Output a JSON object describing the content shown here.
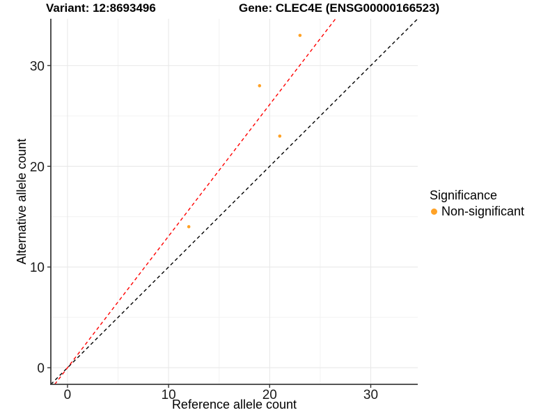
{
  "figure": {
    "title_left": "Variant: 12:8693496",
    "title_right": "Gene: CLEC4E (ENSG00000166523)"
  },
  "chart_data": {
    "type": "scatter",
    "title": "Variant: 12:8693496   Gene: CLEC4E (ENSG00000166523)",
    "xlabel": "Reference allele count",
    "ylabel": "Alternative allele count",
    "xlim": [
      -1.65,
      34.65
    ],
    "ylim": [
      -1.65,
      34.65
    ],
    "x_ticks": [
      0,
      10,
      20,
      30
    ],
    "y_ticks": [
      0,
      10,
      20,
      30
    ],
    "x_minor_ticks": [
      5,
      15,
      25
    ],
    "y_minor_ticks": [
      5,
      15,
      25
    ],
    "grid": true,
    "points": [
      {
        "ref": 12,
        "alt": 14
      },
      {
        "ref": 19,
        "alt": 28
      },
      {
        "ref": 21,
        "alt": 23
      },
      {
        "ref": 23,
        "alt": 33
      }
    ],
    "point_color": "#FFA226",
    "reference_lines": [
      {
        "name": "identity",
        "slope": 1.0,
        "intercept": 0,
        "color": "#000000",
        "style": "dashed"
      },
      {
        "name": "allelic-ratio",
        "slope": 1.3067,
        "intercept": 0,
        "color": "#FF0000",
        "style": "dashed"
      }
    ],
    "legend": {
      "title": "Significance",
      "position": "right",
      "items": [
        {
          "label": "Non-significant",
          "color": "#FFA226"
        }
      ]
    },
    "colors": {
      "grid_major": "#e8e8e8",
      "grid_minor": "#f2f2f2",
      "axis_line": "#3d3d3d",
      "tick_mark": "#333333"
    }
  }
}
